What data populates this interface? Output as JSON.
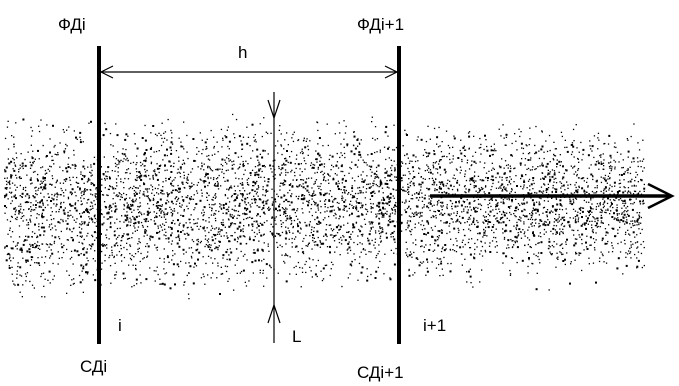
{
  "labels": {
    "top_left": "ФДі",
    "top_right": "ФДі+1",
    "bottom_left": "СДі",
    "bottom_right": "СДі+1",
    "distance": "h",
    "width": "L",
    "index_left": "i",
    "index_right": "i+1"
  },
  "colors": {
    "ink": "#000000",
    "background": "#ffffff"
  }
}
